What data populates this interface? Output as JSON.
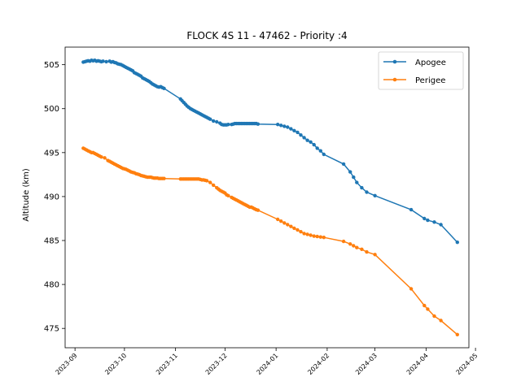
{
  "colors": {
    "apogee": "#1f77b4",
    "perigee": "#ff7f0e",
    "axis": "#000000",
    "background": "#ffffff"
  },
  "chart_data": {
    "type": "line",
    "title": "FLOCK 4S 11 - 47462 - Priority :4",
    "xlabel": "",
    "ylabel": "Altitude (km)",
    "x_type": "date",
    "xlim": [
      "2023-08-26",
      "2024-04-27"
    ],
    "ylim": [
      472.8,
      507.0
    ],
    "x_ticks": [
      "2023-09",
      "2023-10",
      "2023-11",
      "2023-12",
      "2024-01",
      "2024-02",
      "2024-03",
      "2024-04",
      "2024-05"
    ],
    "y_ticks": [
      475,
      480,
      485,
      490,
      495,
      500,
      505
    ],
    "legend": {
      "position": "top-right",
      "entries": [
        "Apogee",
        "Perigee"
      ]
    },
    "grid": false,
    "series": [
      {
        "name": "Apogee",
        "color": "#1f77b4",
        "marker": "circle",
        "x": [
          "2023-09-06",
          "2023-09-07",
          "2023-09-08",
          "2023-09-09",
          "2023-09-10",
          "2023-09-11",
          "2023-09-12",
          "2023-09-13",
          "2023-09-14",
          "2023-09-15",
          "2023-09-16",
          "2023-09-17",
          "2023-09-18",
          "2023-09-20",
          "2023-09-22",
          "2023-09-23",
          "2023-09-24",
          "2023-09-25",
          "2023-09-26",
          "2023-09-27",
          "2023-09-28",
          "2023-09-29",
          "2023-09-30",
          "2023-10-01",
          "2023-10-02",
          "2023-10-03",
          "2023-10-04",
          "2023-10-05",
          "2023-10-06",
          "2023-10-07",
          "2023-10-08",
          "2023-10-09",
          "2023-10-10",
          "2023-10-11",
          "2023-10-12",
          "2023-10-13",
          "2023-10-14",
          "2023-10-15",
          "2023-10-16",
          "2023-10-17",
          "2023-10-18",
          "2023-10-19",
          "2023-10-20",
          "2023-10-21",
          "2023-10-22",
          "2023-10-23",
          "2023-10-24",
          "2023-10-25",
          "2023-11-04",
          "2023-11-05",
          "2023-11-06",
          "2023-11-07",
          "2023-11-08",
          "2023-11-09",
          "2023-11-10",
          "2023-11-11",
          "2023-11-12",
          "2023-11-13",
          "2023-11-14",
          "2023-11-15",
          "2023-11-16",
          "2023-11-17",
          "2023-11-18",
          "2023-11-19",
          "2023-11-20",
          "2023-11-21",
          "2023-11-22",
          "2023-11-24",
          "2023-11-26",
          "2023-11-28",
          "2023-11-29",
          "2023-11-30",
          "2023-12-01",
          "2023-12-02",
          "2023-12-03",
          "2023-12-05",
          "2023-12-06",
          "2023-12-07",
          "2023-12-08",
          "2023-12-09",
          "2023-12-10",
          "2023-12-11",
          "2023-12-12",
          "2023-12-13",
          "2023-12-14",
          "2023-12-15",
          "2023-12-16",
          "2023-12-17",
          "2023-12-18",
          "2023-12-19",
          "2023-12-20",
          "2023-12-21",
          "2024-01-02",
          "2024-01-04",
          "2024-01-06",
          "2024-01-08",
          "2024-01-10",
          "2024-01-12",
          "2024-01-14",
          "2024-01-16",
          "2024-01-18",
          "2024-01-20",
          "2024-01-22",
          "2024-01-24",
          "2024-01-26",
          "2024-01-28",
          "2024-01-30",
          "2024-02-11",
          "2024-02-15",
          "2024-02-17",
          "2024-02-19",
          "2024-02-22",
          "2024-02-25",
          "2024-03-01",
          "2024-03-23",
          "2024-03-31",
          "2024-04-02",
          "2024-04-06",
          "2024-04-10",
          "2024-04-20"
        ],
        "y": [
          505.3,
          505.35,
          505.4,
          505.45,
          505.4,
          505.5,
          505.45,
          505.5,
          505.4,
          505.45,
          505.4,
          505.35,
          505.4,
          505.35,
          505.4,
          505.3,
          505.35,
          505.25,
          505.2,
          505.1,
          505.05,
          505.0,
          504.9,
          504.8,
          504.7,
          504.6,
          504.5,
          504.4,
          504.3,
          504.1,
          504.0,
          503.9,
          503.8,
          503.7,
          503.5,
          503.4,
          503.3,
          503.2,
          503.1,
          502.95,
          502.8,
          502.7,
          502.6,
          502.5,
          502.45,
          502.5,
          502.4,
          502.3,
          501.1,
          500.9,
          500.7,
          500.5,
          500.3,
          500.15,
          500.0,
          499.9,
          499.8,
          499.7,
          499.6,
          499.5,
          499.4,
          499.3,
          499.2,
          499.1,
          499.0,
          498.9,
          498.8,
          498.6,
          498.5,
          498.35,
          498.2,
          498.15,
          498.15,
          498.15,
          498.2,
          498.2,
          498.25,
          498.3,
          498.3,
          498.3,
          498.3,
          498.3,
          498.3,
          498.3,
          498.3,
          498.3,
          498.3,
          498.3,
          498.3,
          498.3,
          498.3,
          498.25,
          498.2,
          498.1,
          498.0,
          497.9,
          497.7,
          497.5,
          497.3,
          497.0,
          496.7,
          496.4,
          496.2,
          495.9,
          495.5,
          495.2,
          494.8,
          493.7,
          492.8,
          492.2,
          491.6,
          491.0,
          490.5,
          490.1,
          488.5,
          487.5,
          487.3,
          487.1,
          486.8,
          484.8
        ]
      },
      {
        "name": "Perigee",
        "color": "#ff7f0e",
        "marker": "circle",
        "x": [
          "2023-09-06",
          "2023-09-07",
          "2023-09-08",
          "2023-09-09",
          "2023-09-10",
          "2023-09-11",
          "2023-09-12",
          "2023-09-13",
          "2023-09-14",
          "2023-09-15",
          "2023-09-16",
          "2023-09-17",
          "2023-09-19",
          "2023-09-21",
          "2023-09-22",
          "2023-09-23",
          "2023-09-24",
          "2023-09-25",
          "2023-09-26",
          "2023-09-27",
          "2023-09-28",
          "2023-09-29",
          "2023-09-30",
          "2023-10-01",
          "2023-10-02",
          "2023-10-03",
          "2023-10-04",
          "2023-10-05",
          "2023-10-06",
          "2023-10-07",
          "2023-10-08",
          "2023-10-09",
          "2023-10-10",
          "2023-10-11",
          "2023-10-12",
          "2023-10-13",
          "2023-10-14",
          "2023-10-15",
          "2023-10-16",
          "2023-10-17",
          "2023-10-18",
          "2023-10-19",
          "2023-10-20",
          "2023-10-21",
          "2023-10-22",
          "2023-10-23",
          "2023-10-24",
          "2023-10-25",
          "2023-11-04",
          "2023-11-05",
          "2023-11-06",
          "2023-11-07",
          "2023-11-08",
          "2023-11-09",
          "2023-11-10",
          "2023-11-11",
          "2023-11-12",
          "2023-11-13",
          "2023-11-14",
          "2023-11-15",
          "2023-11-16",
          "2023-11-17",
          "2023-11-18",
          "2023-11-19",
          "2023-11-20",
          "2023-11-22",
          "2023-11-24",
          "2023-11-26",
          "2023-11-27",
          "2023-11-28",
          "2023-11-29",
          "2023-11-30",
          "2023-12-01",
          "2023-12-02",
          "2023-12-03",
          "2023-12-05",
          "2023-12-06",
          "2023-12-07",
          "2023-12-08",
          "2023-12-09",
          "2023-12-10",
          "2023-12-11",
          "2023-12-12",
          "2023-12-13",
          "2023-12-14",
          "2023-12-15",
          "2023-12-16",
          "2023-12-17",
          "2023-12-18",
          "2023-12-19",
          "2023-12-20",
          "2023-12-21",
          "2024-01-02",
          "2024-01-04",
          "2024-01-06",
          "2024-01-08",
          "2024-01-10",
          "2024-01-12",
          "2024-01-14",
          "2024-01-16",
          "2024-01-18",
          "2024-01-20",
          "2024-01-22",
          "2024-01-24",
          "2024-01-26",
          "2024-01-28",
          "2024-01-30",
          "2024-02-11",
          "2024-02-15",
          "2024-02-17",
          "2024-02-19",
          "2024-02-22",
          "2024-02-25",
          "2024-03-01",
          "2024-03-23",
          "2024-03-31",
          "2024-04-02",
          "2024-04-06",
          "2024-04-10",
          "2024-04-20"
        ],
        "y": [
          495.5,
          495.4,
          495.3,
          495.2,
          495.1,
          495.0,
          495.0,
          494.9,
          494.8,
          494.7,
          494.6,
          494.5,
          494.4,
          494.1,
          494.0,
          493.9,
          493.8,
          493.7,
          493.6,
          493.5,
          493.4,
          493.3,
          493.2,
          493.15,
          493.1,
          493.0,
          492.9,
          492.8,
          492.75,
          492.7,
          492.6,
          492.55,
          492.5,
          492.4,
          492.35,
          492.3,
          492.25,
          492.2,
          492.2,
          492.2,
          492.15,
          492.1,
          492.1,
          492.1,
          492.05,
          492.05,
          492.05,
          492.05,
          492.0,
          492.0,
          492.0,
          492.0,
          492.0,
          492.0,
          492.0,
          492.0,
          492.0,
          492.0,
          492.0,
          492.0,
          491.95,
          491.9,
          491.9,
          491.85,
          491.8,
          491.6,
          491.3,
          491.0,
          490.85,
          490.7,
          490.6,
          490.5,
          490.4,
          490.2,
          490.1,
          489.9,
          489.8,
          489.7,
          489.6,
          489.5,
          489.4,
          489.3,
          489.2,
          489.1,
          489.0,
          488.9,
          488.8,
          488.8,
          488.7,
          488.6,
          488.5,
          488.45,
          487.4,
          487.2,
          487.0,
          486.8,
          486.6,
          486.4,
          486.2,
          486.0,
          485.8,
          485.7,
          485.6,
          485.5,
          485.45,
          485.4,
          485.35,
          484.9,
          484.6,
          484.4,
          484.2,
          484.0,
          483.7,
          483.4,
          479.5,
          477.6,
          477.2,
          476.4,
          475.9,
          474.3
        ]
      }
    ]
  }
}
